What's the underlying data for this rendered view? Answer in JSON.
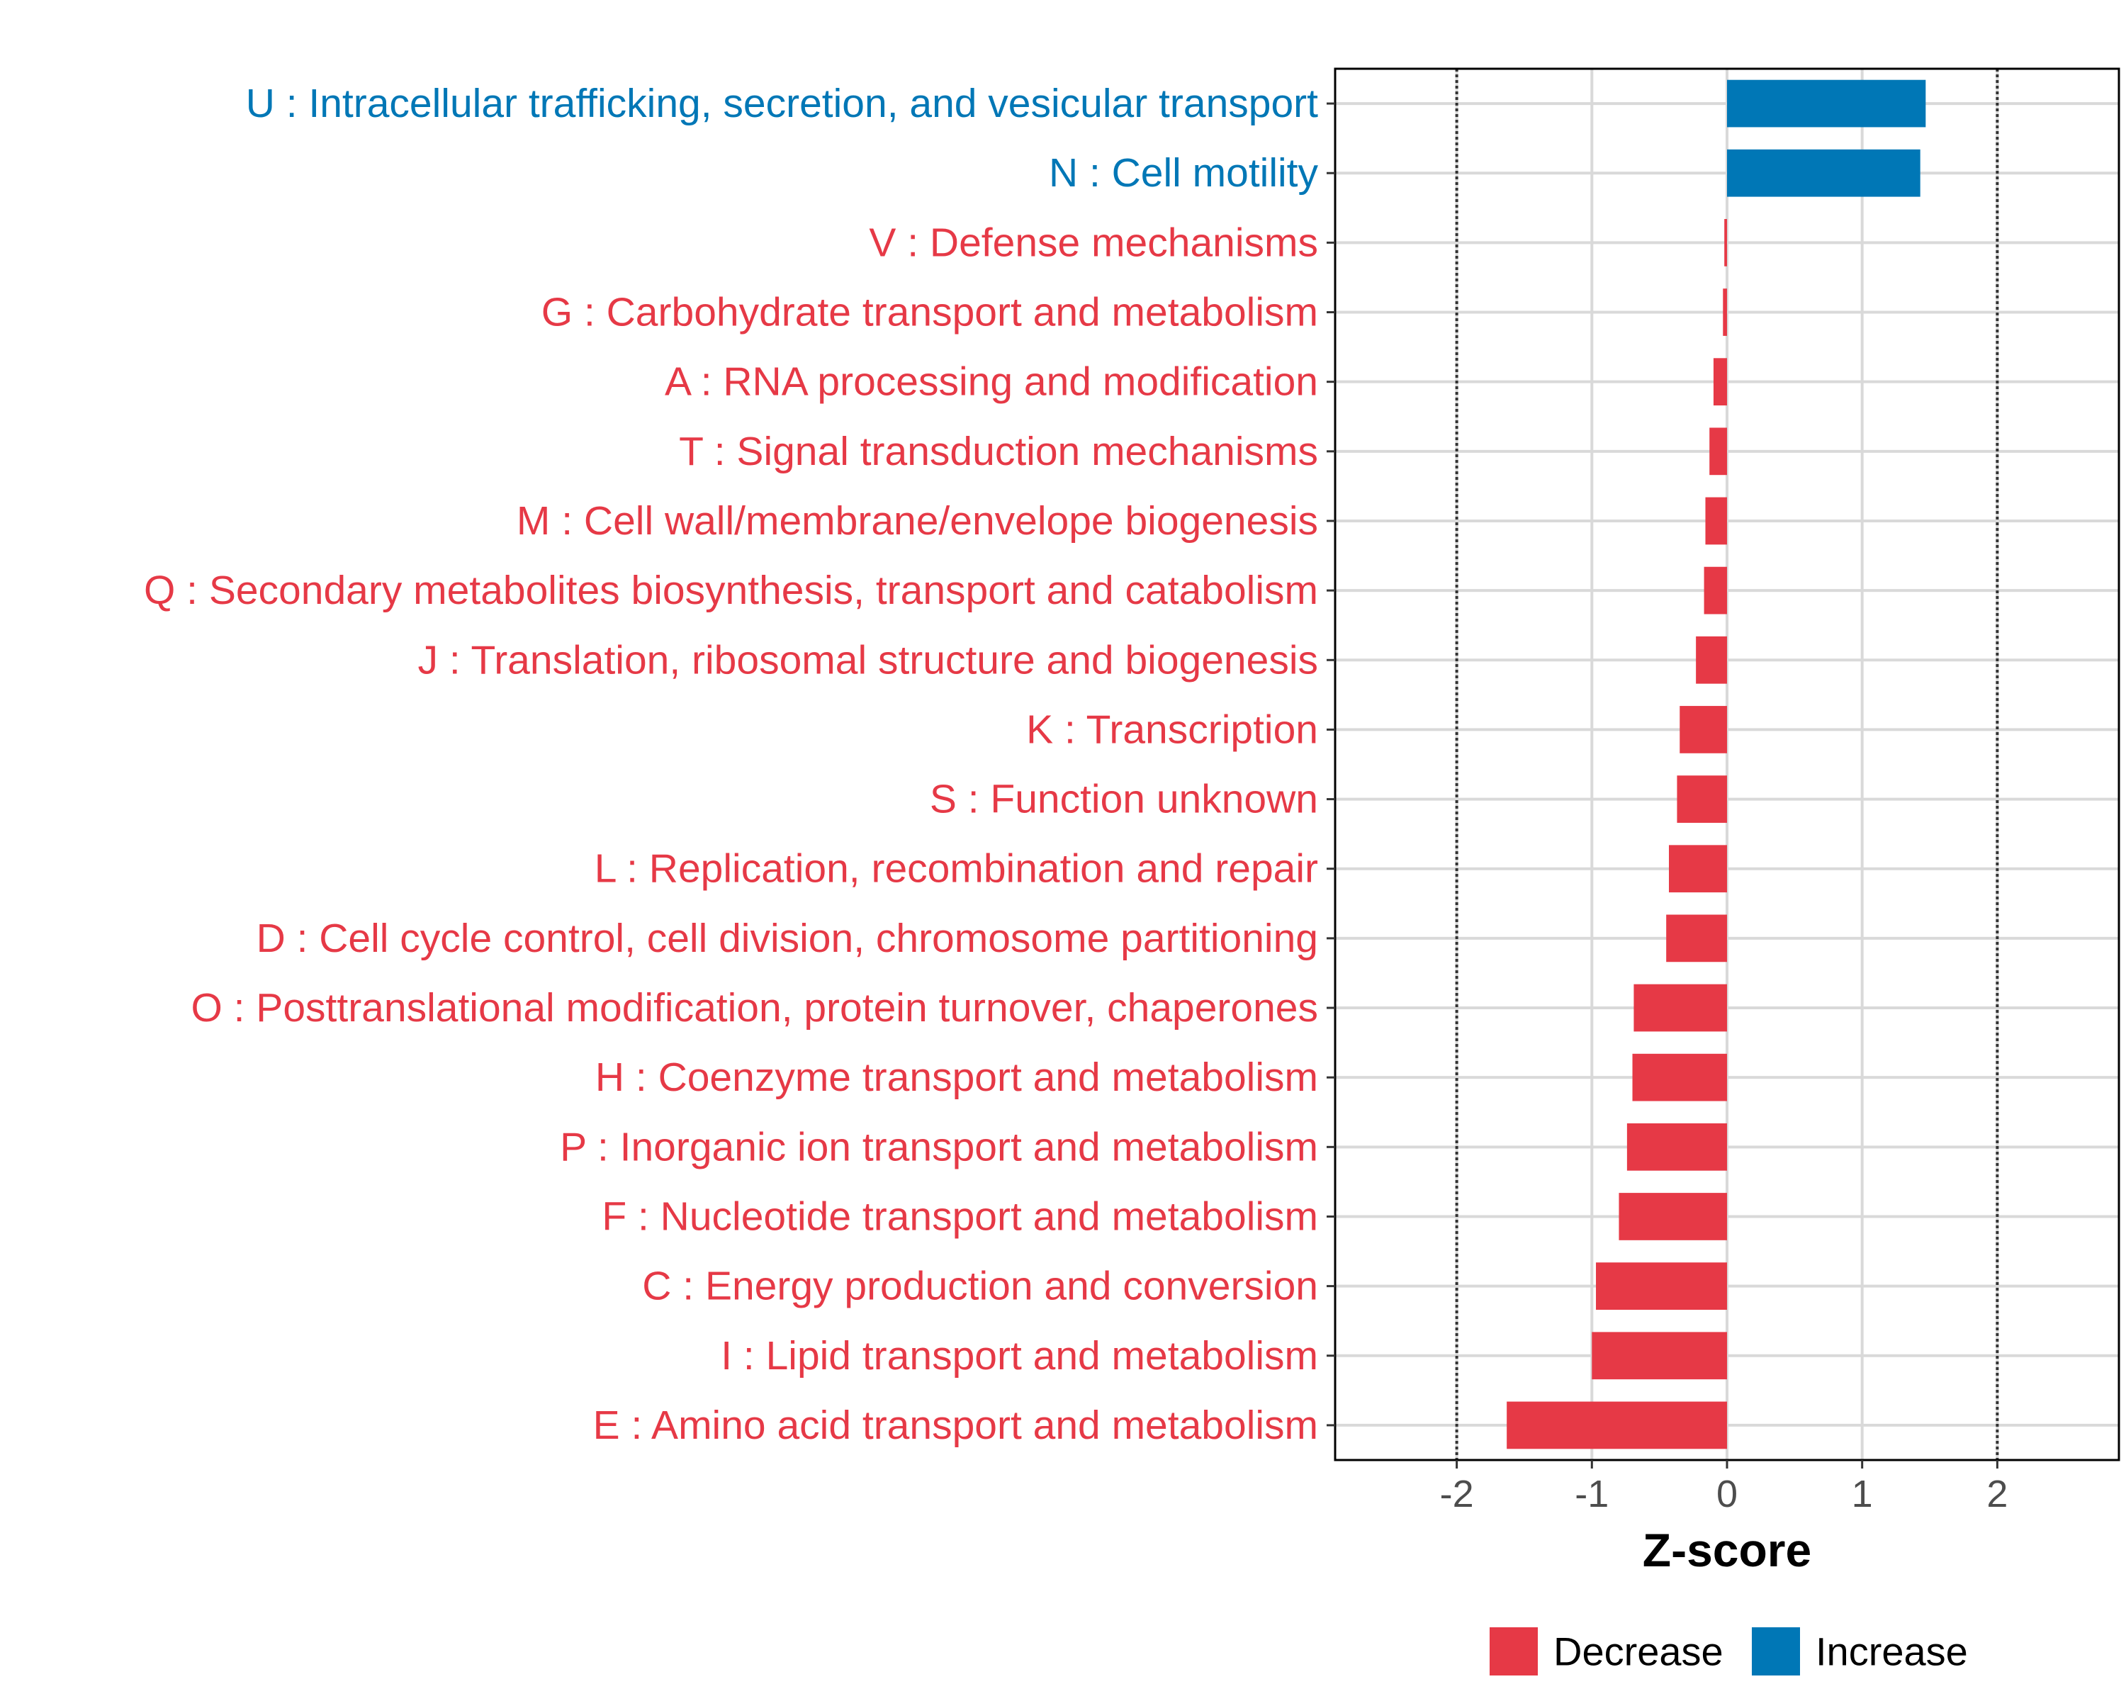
{
  "chart_data": {
    "type": "bar",
    "orientation": "horizontal",
    "xlabel": "Z-score",
    "ylabel": "",
    "xlim": [
      -2.9,
      2.9
    ],
    "x_ticks": [
      -2,
      -1,
      0,
      1,
      2
    ],
    "x_tick_labels": [
      "-2",
      "-1",
      "0",
      "1",
      "2"
    ],
    "reference_lines": [
      -2,
      2
    ],
    "grid": true,
    "categories": [
      "U : Intracellular trafficking, secretion, and vesicular transport",
      "N : Cell motility",
      "V : Defense mechanisms",
      "G : Carbohydrate transport and metabolism",
      "A : RNA processing and modification",
      "T : Signal transduction mechanisms",
      "M : Cell wall/membrane/envelope biogenesis",
      "Q : Secondary metabolites biosynthesis, transport and catabolism",
      "J : Translation, ribosomal structure and biogenesis",
      "K : Transcription",
      "S : Function unknown",
      "L : Replication, recombination and repair",
      "D : Cell cycle control, cell division, chromosome partitioning",
      "O : Posttranslational modification, protein turnover, chaperones",
      "H : Coenzyme transport and metabolism",
      "P : Inorganic ion transport and metabolism",
      "F : Nucleotide transport and metabolism",
      "C : Energy production and conversion",
      "I : Lipid transport and metabolism",
      "E : Amino acid transport and metabolism"
    ],
    "values": [
      1.47,
      1.43,
      -0.02,
      -0.03,
      -0.1,
      -0.13,
      -0.16,
      -0.17,
      -0.23,
      -0.35,
      -0.37,
      -0.43,
      -0.45,
      -0.69,
      -0.7,
      -0.74,
      -0.8,
      -0.97,
      -1.0,
      -1.63
    ],
    "groups": [
      "Increase",
      "Increase",
      "Decrease",
      "Decrease",
      "Decrease",
      "Decrease",
      "Decrease",
      "Decrease",
      "Decrease",
      "Decrease",
      "Decrease",
      "Decrease",
      "Decrease",
      "Decrease",
      "Decrease",
      "Decrease",
      "Decrease",
      "Decrease",
      "Decrease",
      "Decrease"
    ],
    "legend": {
      "position": "bottom",
      "items": [
        {
          "label": "Decrease",
          "color": "#e63946"
        },
        {
          "label": "Increase",
          "color": "#0077b6"
        }
      ]
    },
    "colors": {
      "Decrease": "#e63946",
      "Increase": "#0077b6"
    }
  }
}
